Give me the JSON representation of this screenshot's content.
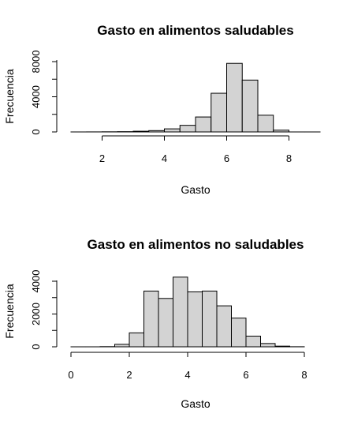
{
  "chart_data": [
    {
      "type": "bar",
      "title": "Gasto en alimentos saludables",
      "xlabel": "Gasto",
      "ylabel": "Frecuencia",
      "bin_width": 0.5,
      "x_ticks": [
        2,
        4,
        6,
        8
      ],
      "y_ticks": [
        0,
        4000,
        8000
      ],
      "bins": [
        {
          "start": 1.0,
          "end": 1.5,
          "value": 0
        },
        {
          "start": 1.5,
          "end": 2.0,
          "value": 5
        },
        {
          "start": 2.0,
          "end": 2.5,
          "value": 15
        },
        {
          "start": 2.5,
          "end": 3.0,
          "value": 30
        },
        {
          "start": 3.0,
          "end": 3.5,
          "value": 80
        },
        {
          "start": 3.5,
          "end": 4.0,
          "value": 150
        },
        {
          "start": 4.0,
          "end": 4.5,
          "value": 350
        },
        {
          "start": 4.5,
          "end": 5.0,
          "value": 750
        },
        {
          "start": 5.0,
          "end": 5.5,
          "value": 1700
        },
        {
          "start": 5.5,
          "end": 6.0,
          "value": 4400
        },
        {
          "start": 6.0,
          "end": 6.5,
          "value": 7800
        },
        {
          "start": 6.5,
          "end": 7.0,
          "value": 5900
        },
        {
          "start": 7.0,
          "end": 7.5,
          "value": 1900
        },
        {
          "start": 7.5,
          "end": 8.0,
          "value": 200
        },
        {
          "start": 8.0,
          "end": 8.5,
          "value": 0
        },
        {
          "start": 8.5,
          "end": 9.0,
          "value": 0
        }
      ],
      "xlim": [
        1,
        9
      ],
      "ylim": [
        0,
        8000
      ],
      "colors": {
        "bar_fill": "#d3d3d3",
        "bar_stroke": "#000000"
      }
    },
    {
      "type": "bar",
      "title": "Gasto en alimentos no saludables",
      "xlabel": "Gasto",
      "ylabel": "Frecuencia",
      "bin_width": 0.5,
      "x_ticks": [
        0,
        2,
        4,
        6,
        8
      ],
      "y_ticks": [
        0,
        2000,
        4000
      ],
      "bins": [
        {
          "start": 0.0,
          "end": 0.5,
          "value": 0
        },
        {
          "start": 0.5,
          "end": 1.0,
          "value": 0
        },
        {
          "start": 1.0,
          "end": 1.5,
          "value": 10
        },
        {
          "start": 1.5,
          "end": 2.0,
          "value": 150
        },
        {
          "start": 2.0,
          "end": 2.5,
          "value": 850
        },
        {
          "start": 2.5,
          "end": 3.0,
          "value": 3400
        },
        {
          "start": 3.0,
          "end": 3.5,
          "value": 2950
        },
        {
          "start": 3.5,
          "end": 4.0,
          "value": 4250
        },
        {
          "start": 4.0,
          "end": 4.5,
          "value": 3350
        },
        {
          "start": 4.5,
          "end": 5.0,
          "value": 3400
        },
        {
          "start": 5.0,
          "end": 5.5,
          "value": 2500
        },
        {
          "start": 5.5,
          "end": 6.0,
          "value": 1750
        },
        {
          "start": 6.0,
          "end": 6.5,
          "value": 650
        },
        {
          "start": 6.5,
          "end": 7.0,
          "value": 200
        },
        {
          "start": 7.0,
          "end": 7.5,
          "value": 40
        },
        {
          "start": 7.5,
          "end": 8.0,
          "value": 5
        }
      ],
      "xlim": [
        0,
        8
      ],
      "ylim": [
        0,
        4000
      ],
      "colors": {
        "bar_fill": "#d3d3d3",
        "bar_stroke": "#000000"
      }
    }
  ]
}
